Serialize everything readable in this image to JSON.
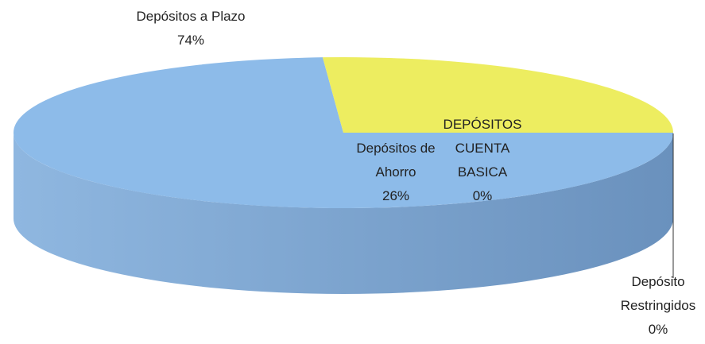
{
  "chart_data": {
    "type": "pie3d",
    "categories": [
      "Depósitos a Plazo",
      "Depósitos de Ahorro",
      "DEPÓSITOS CUENTA BASICA",
      "Depósito Restringidos"
    ],
    "values": [
      74,
      26,
      0,
      0
    ],
    "value_labels": [
      "74%",
      "26%",
      "0%",
      "0%"
    ],
    "colors": [
      "#8dbbe9",
      "#eded60",
      "#9ab86a",
      "#c08060"
    ],
    "side_colors": [
      [
        "#8fb7e0",
        "#6a91bd"
      ],
      [
        "#c4c44a",
        "#5a5a22"
      ],
      [
        "#7a9050",
        "#905a40"
      ],
      [
        "#7a9050",
        "#905a40"
      ]
    ]
  }
}
